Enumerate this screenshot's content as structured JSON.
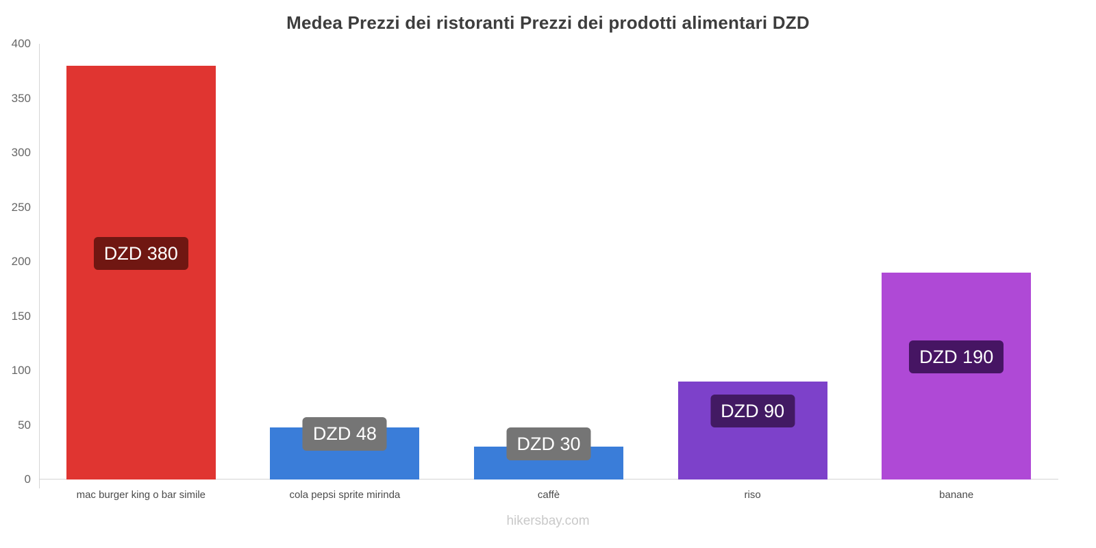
{
  "footer": "hikersbay.com",
  "chart_data": {
    "type": "bar",
    "title": "Medea Prezzi dei ristoranti Prezzi dei prodotti alimentari DZD",
    "categories": [
      "mac burger king o bar simile",
      "cola pepsi sprite mirinda",
      "caffè",
      "riso",
      "banane"
    ],
    "values": [
      380,
      48,
      30,
      90,
      190
    ],
    "bar_labels": [
      "DZD 380",
      "DZD 48",
      "DZD 30",
      "DZD 90",
      "DZD 190"
    ],
    "bar_colors": [
      "#e03531",
      "#3a7dd9",
      "#3a7dd9",
      "#7d41ca",
      "#af49d6"
    ],
    "label_colors": [
      "#701712",
      "#757575",
      "#757575",
      "#421a63",
      "#461563"
    ],
    "xlabel": "",
    "ylabel": "",
    "ylim": [
      0,
      400
    ],
    "yticks": [
      0,
      50,
      100,
      150,
      200,
      250,
      300,
      350,
      400
    ],
    "grid": false,
    "legend": false,
    "currency": "DZD"
  }
}
